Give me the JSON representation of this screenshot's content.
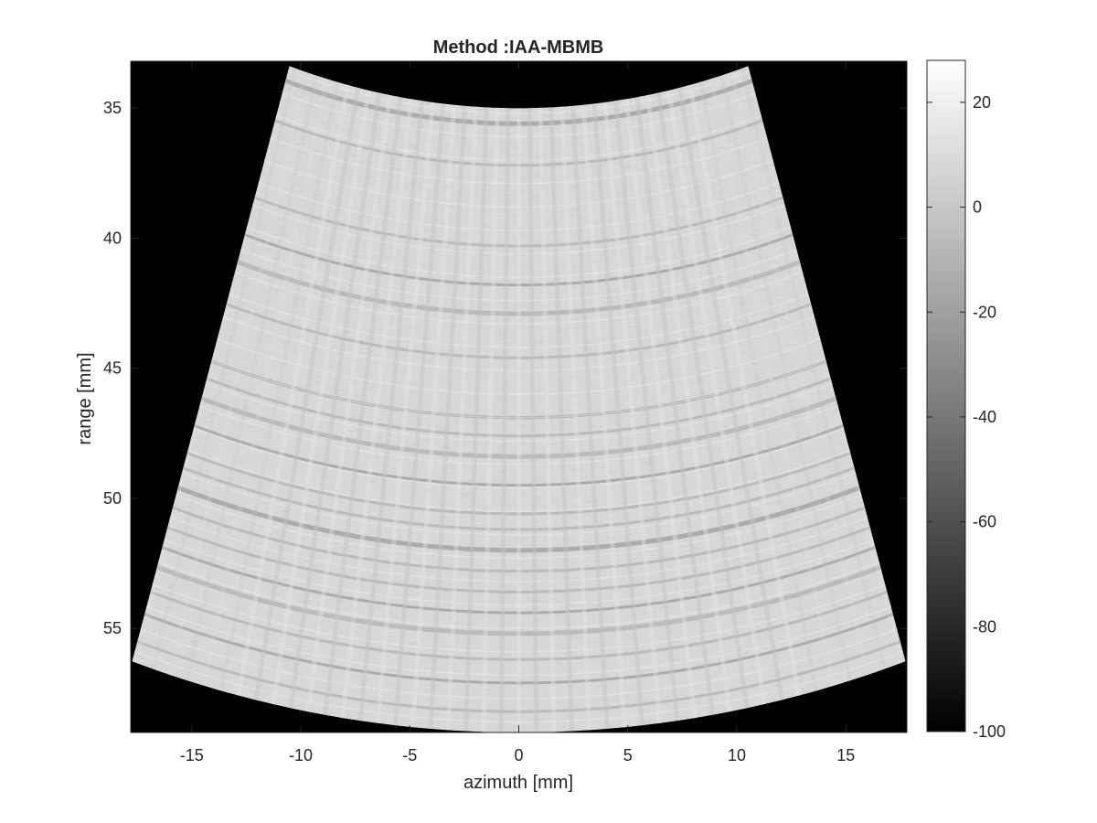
{
  "chart_data": {
    "type": "heatmap",
    "title": "Method :IAA-MBMB",
    "xlabel": "azimuth [mm]",
    "ylabel": "range [mm]",
    "xlim": [
      -17.8,
      17.8
    ],
    "ylim": [
      33.2,
      59.0
    ],
    "y_reversed": true,
    "x_ticks": [
      -15,
      -10,
      -5,
      0,
      5,
      10,
      15
    ],
    "x_tick_labels": [
      "-15",
      "-10",
      "-5",
      "0",
      "5",
      "10",
      "15"
    ],
    "y_ticks": [
      35,
      40,
      45,
      50,
      55
    ],
    "y_tick_labels": [
      "35",
      "40",
      "45",
      "50",
      "55"
    ],
    "background_color": "#000000",
    "colormap": "gray",
    "colorbar": {
      "clim": [
        -100,
        28
      ],
      "ticks": [
        20,
        0,
        -20,
        -40,
        -60,
        -80,
        -100
      ],
      "tick_labels": [
        "20",
        "0",
        "-20",
        "-40",
        "-60",
        "-80",
        "-100"
      ]
    },
    "sector": {
      "r_min": 35.0,
      "r_max": 59.0,
      "half_angle_deg": 17.5
    },
    "dark_bands_range_mm": [
      35.6,
      37.2,
      40.3,
      41.8,
      42.9,
      44.6,
      46.9,
      47.6,
      48.4,
      49.5,
      50.6,
      51.2,
      52.0,
      52.8,
      53.6,
      54.4,
      55.2,
      56.2,
      57.1,
      58.2
    ],
    "typical_intensity_db": 12
  }
}
